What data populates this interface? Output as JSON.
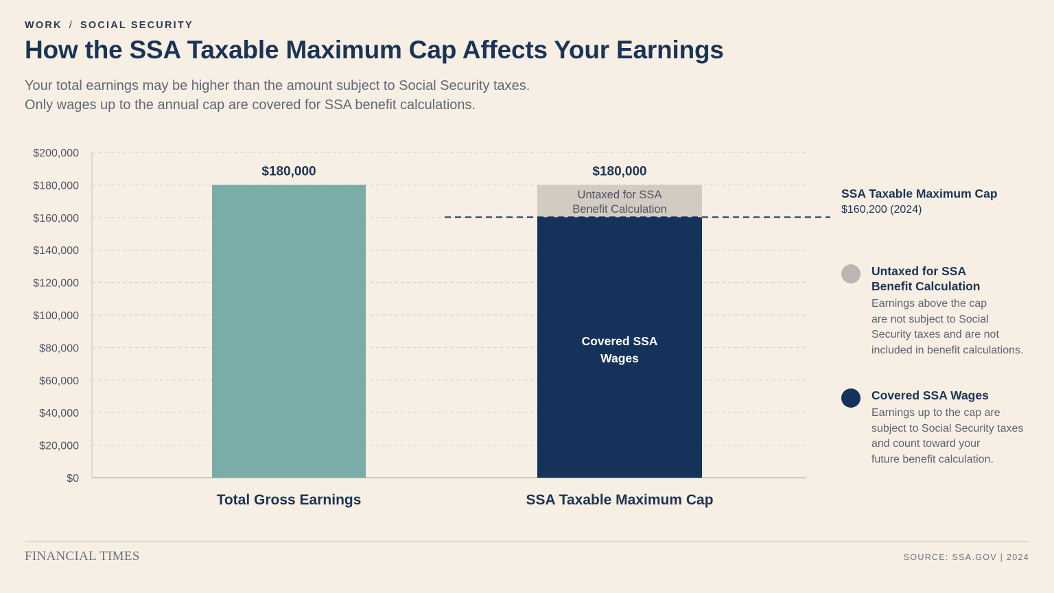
{
  "breadcrumb": {
    "section": "WORK",
    "separator": "/",
    "subsection": "SOCIAL SECURITY"
  },
  "title": "How the SSA Taxable Maximum Cap Affects Your Earnings",
  "subtitle": {
    "line1": "Your total earnings may be higher than the amount subject to Social Security taxes.",
    "line2": "Only wages up to the annual cap are covered for SSA benefit calculations."
  },
  "colors": {
    "gross": "#7aaca8",
    "covered": "#14325a",
    "untaxed": "#d3cbc2",
    "untaxed_dot": "#b9b6b3",
    "cap_line": "#14325a",
    "grid": "#d6cdc1"
  },
  "chart_data": {
    "type": "bar",
    "stacked": true,
    "categories": [
      "Total Gross Earnings",
      "SSA Taxable Maximum Cap"
    ],
    "series": [
      {
        "name": "Covered SSA Wages",
        "values": [
          180000,
          160200
        ]
      },
      {
        "name": "Untaxed for SSA Benefit Calculation",
        "values": [
          0,
          19800
        ]
      }
    ],
    "totals": [
      180000,
      180000
    ],
    "total_labels": [
      "$180,000",
      "$180,000"
    ],
    "segment_labels": {
      "untaxed": [
        "Untaxed for SSA",
        "Benefit Calculation"
      ],
      "covered": [
        "Covered SSA",
        "Wages"
      ]
    },
    "ylim": [
      0,
      200000
    ],
    "yticks": [
      "$0",
      "$20,000",
      "$40,000",
      "$60,000",
      "$80,000",
      "$100,000",
      "$120,000",
      "$140,000",
      "$160,000",
      "$180,000",
      "$200,000"
    ],
    "grid": true,
    "reference_line": {
      "value": 160200,
      "label": "SSA Taxable Maximum Cap",
      "sublabel": "$160,200 (2024)"
    },
    "legend_position": "right"
  },
  "legend": {
    "items": [
      {
        "title_line1": "Untaxed for SSA",
        "title_line2": "Benefit Calculation",
        "description": [
          "Earnings above the cap",
          "are not subject to Social",
          "Security taxes and are not",
          "included in benefit calculations."
        ]
      },
      {
        "title_line1": "Covered SSA Wages",
        "description": [
          "Earnings up to the cap are",
          "subject to Social Security taxes",
          "and count toward your",
          "future benefit calculation."
        ]
      }
    ]
  },
  "footer": {
    "brand": "FINANCIAL TIMES",
    "source": "SOURCE: SSA.GOV  |  2024"
  }
}
